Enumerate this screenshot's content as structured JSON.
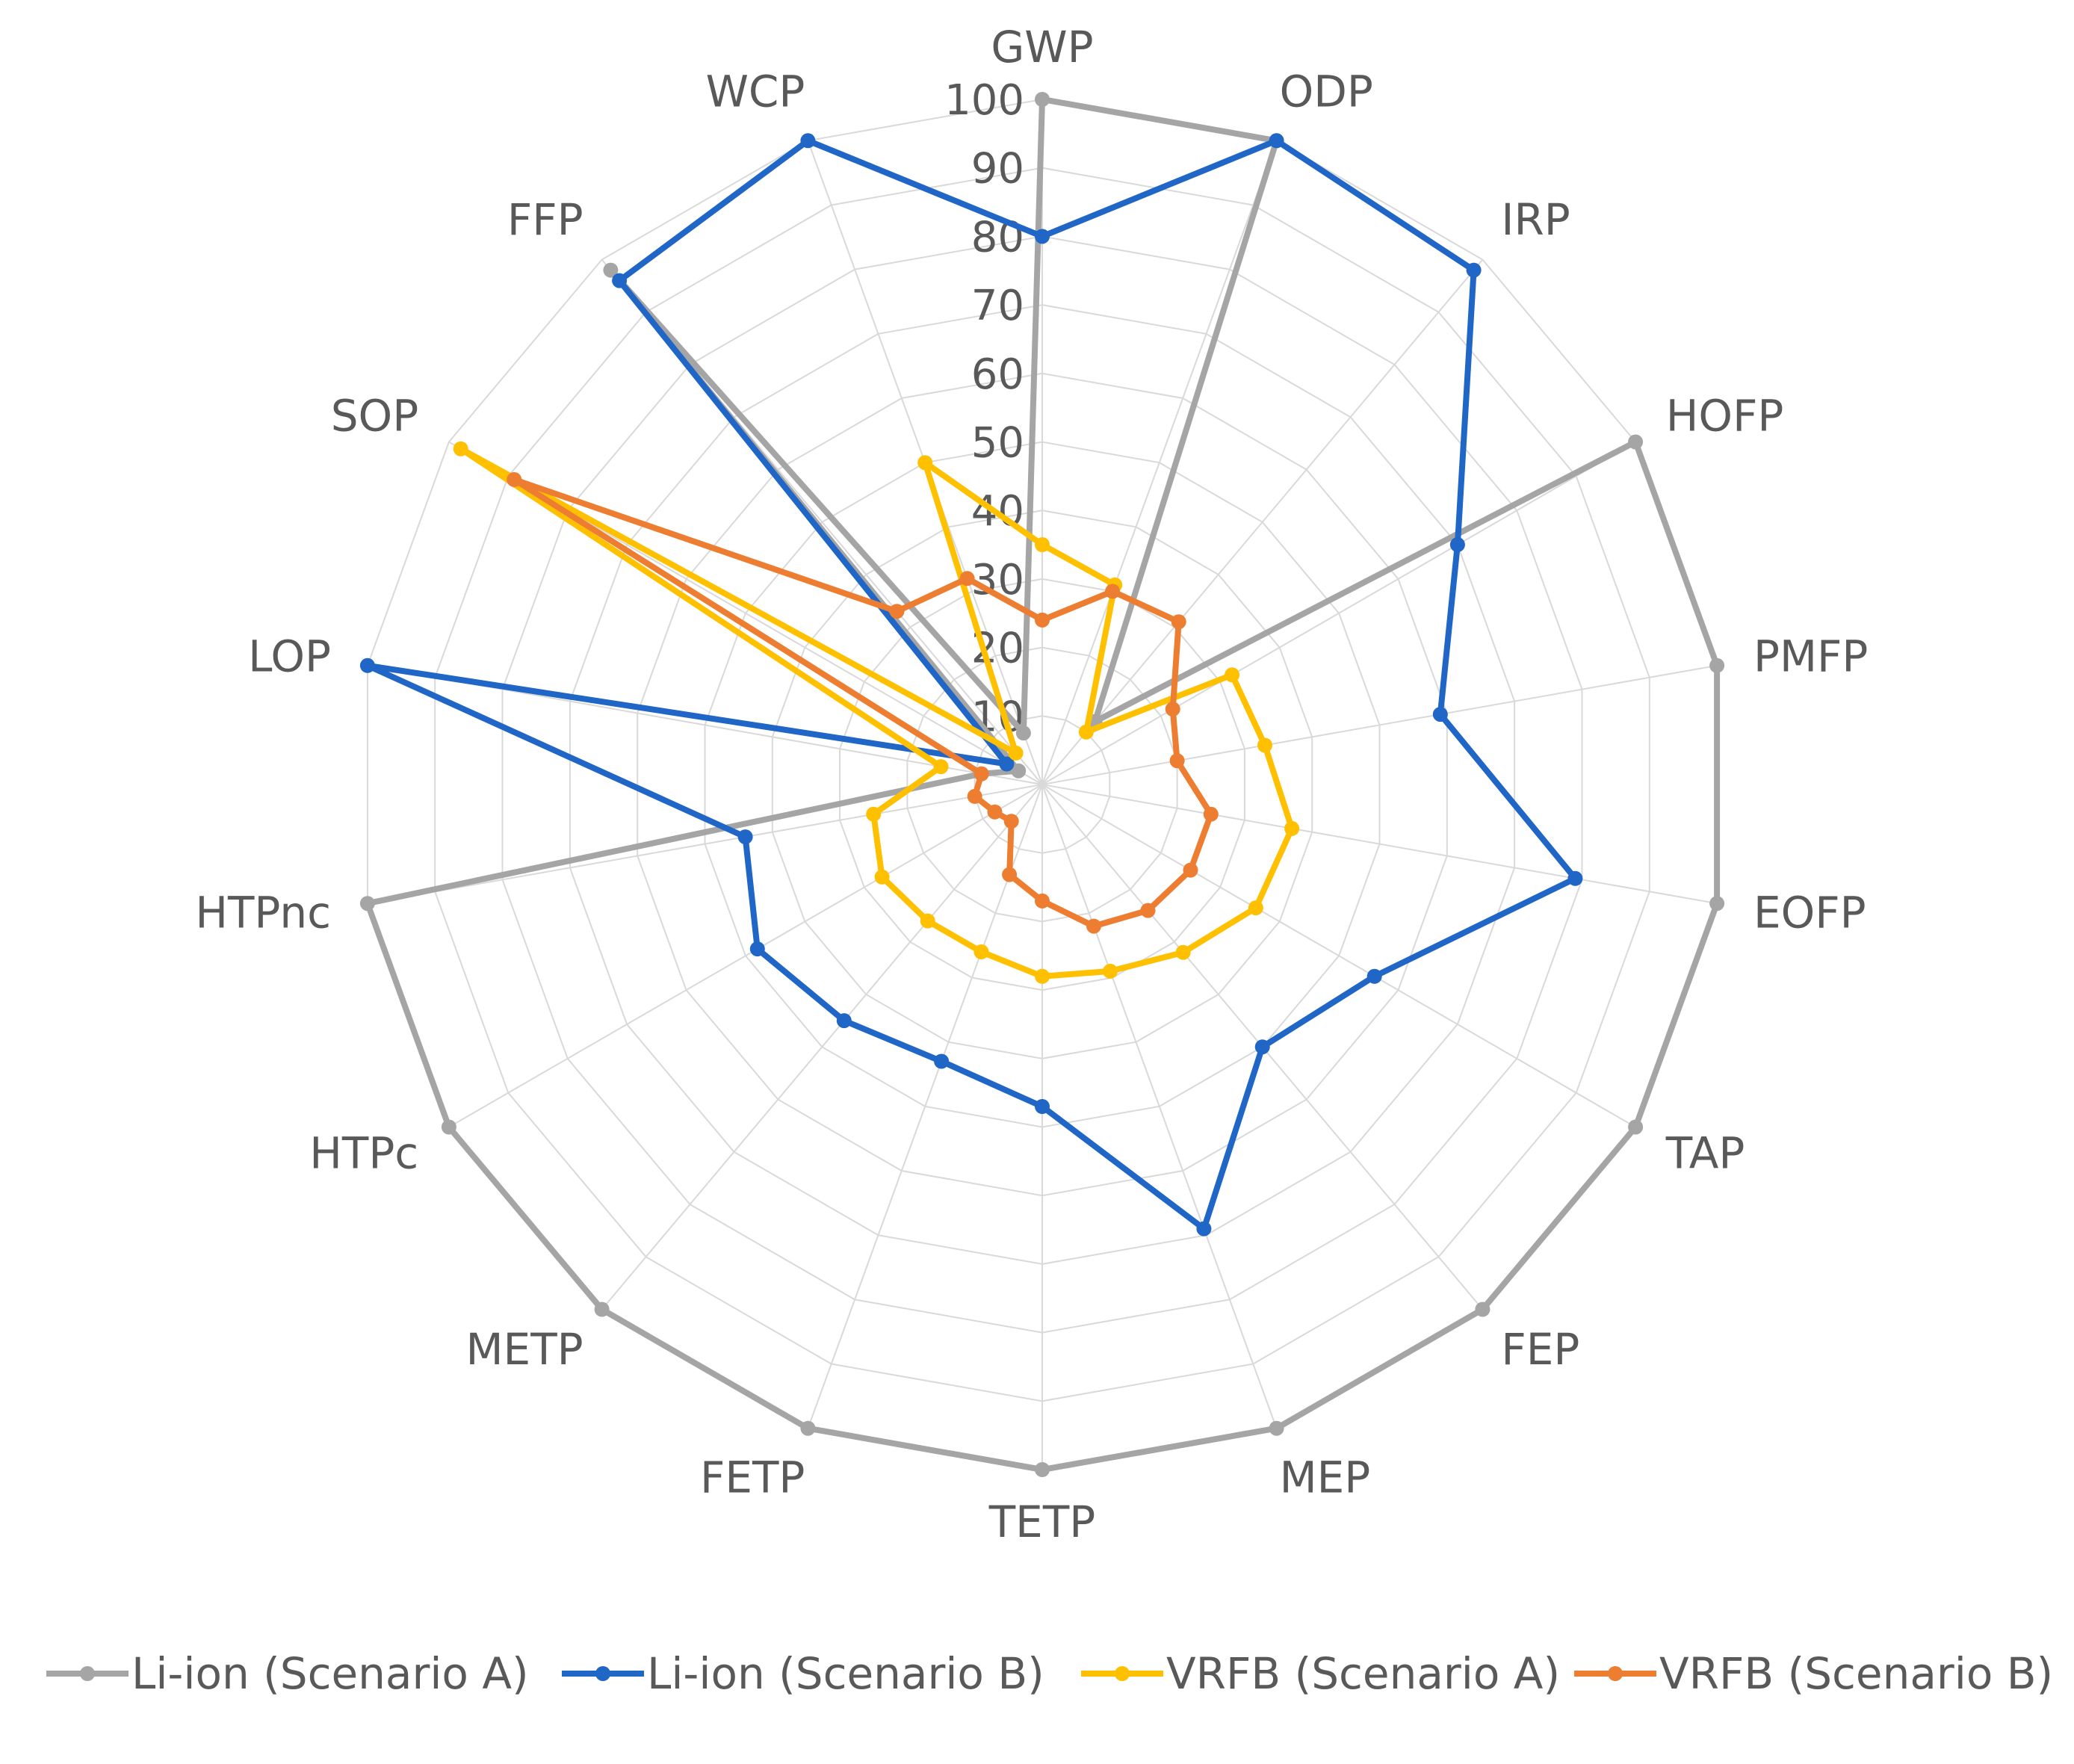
{
  "chart_data": {
    "type": "radar",
    "title": "",
    "categories": [
      "GWP",
      "ODP",
      "IRP",
      "HOFP",
      "PMFP",
      "EOFP",
      "TAP",
      "FEP",
      "MEP",
      "TETP",
      "FETP",
      "METP",
      "HTPc",
      "HTPnc",
      "LOP",
      "SOP",
      "FFP",
      "WCP"
    ],
    "rlim": [
      0,
      100
    ],
    "ticks": [
      10,
      20,
      30,
      40,
      50,
      60,
      70,
      80,
      90,
      100
    ],
    "tick_labels": [
      "10",
      "20",
      "30",
      "40",
      "50",
      "60",
      "70",
      "80",
      "90",
      "100"
    ],
    "legend_position": "bottom",
    "series": [
      {
        "name": "Li-ion (Scenario A)",
        "color": "#a5a5a5",
        "values": [
          100,
          100,
          12,
          100,
          100,
          100,
          100,
          100,
          100,
          100,
          100,
          100,
          100,
          100,
          9,
          4,
          98,
          8
        ]
      },
      {
        "name": "Li-ion (Scenario B)",
        "color": "#1f66c6",
        "values": [
          80,
          100,
          98,
          70,
          59,
          79,
          56,
          50,
          69,
          47,
          43,
          45,
          48,
          44,
          100,
          6,
          96,
          100
        ]
      },
      {
        "name": "VRFB (Scenario A)",
        "color": "#ffc000",
        "values": [
          35,
          31,
          10,
          32,
          33,
          37,
          36,
          32,
          29,
          28,
          26,
          26,
          27,
          25,
          15,
          98,
          6,
          50
        ]
      },
      {
        "name": "VRFB (Scenario B)",
        "color": "#ed7d31",
        "values": [
          24,
          30,
          31,
          22,
          20,
          25,
          25,
          24,
          22,
          17,
          14,
          7,
          8,
          10,
          9,
          89,
          33,
          32
        ]
      }
    ]
  }
}
